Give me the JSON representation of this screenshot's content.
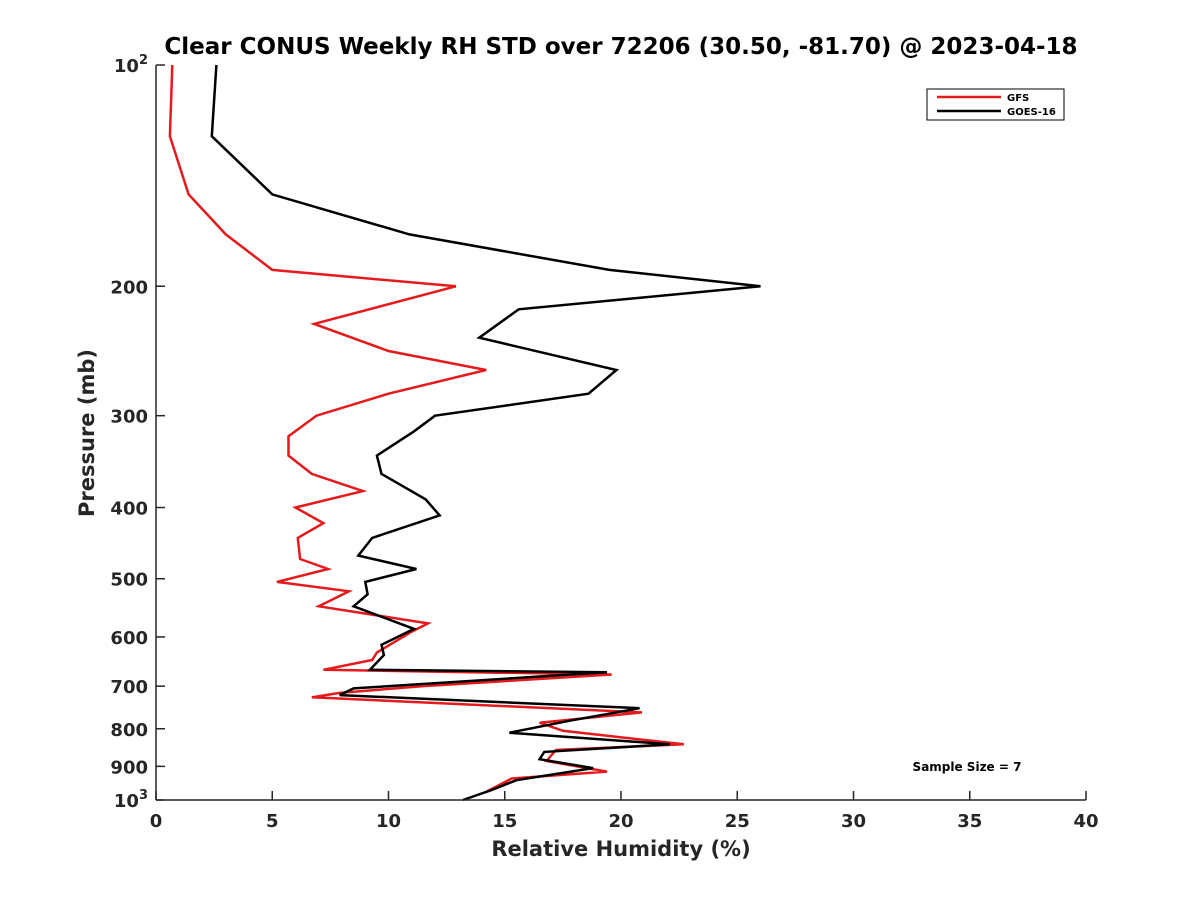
{
  "chart_data": {
    "type": "line",
    "title": "Clear CONUS Weekly RH STD over 72206 (30.50, -81.70) @ 2023-04-18",
    "xlabel": "Relative Humidity (%)",
    "ylabel": "Pressure (mb)",
    "xlim": [
      0,
      40
    ],
    "ylim": [
      100,
      1000
    ],
    "y_scale": "log",
    "y_reversed": true,
    "grid": false,
    "legend_position": "top-right",
    "x_ticks": [
      0,
      5,
      10,
      15,
      20,
      25,
      30,
      35,
      40
    ],
    "y_ticks": [
      {
        "value": 100,
        "label": "10",
        "exp": "2"
      },
      {
        "value": 200,
        "label": "200",
        "exp": ""
      },
      {
        "value": 300,
        "label": "300",
        "exp": ""
      },
      {
        "value": 400,
        "label": "400",
        "exp": ""
      },
      {
        "value": 500,
        "label": "500",
        "exp": ""
      },
      {
        "value": 600,
        "label": "600",
        "exp": ""
      },
      {
        "value": 700,
        "label": "700",
        "exp": ""
      },
      {
        "value": 800,
        "label": "800",
        "exp": ""
      },
      {
        "value": 900,
        "label": "900",
        "exp": ""
      },
      {
        "value": 1000,
        "label": "10",
        "exp": "3"
      }
    ],
    "annotation": "Sample Size = 7",
    "series": [
      {
        "name": "GFS",
        "color": "#e41a1c",
        "points": [
          [
            0.7,
            100
          ],
          [
            0.6,
            125
          ],
          [
            1.4,
            150
          ],
          [
            3.0,
            170
          ],
          [
            5.0,
            190
          ],
          [
            12.9,
            200
          ],
          [
            6.8,
            225
          ],
          [
            10.0,
            245
          ],
          [
            14.2,
            260
          ],
          [
            10.0,
            280
          ],
          [
            6.9,
            300
          ],
          [
            5.7,
            320
          ],
          [
            5.7,
            340
          ],
          [
            6.7,
            360
          ],
          [
            8.9,
            380
          ],
          [
            6.0,
            400
          ],
          [
            7.2,
            420
          ],
          [
            6.1,
            440
          ],
          [
            6.2,
            470
          ],
          [
            7.4,
            485
          ],
          [
            5.2,
            505
          ],
          [
            8.3,
            520
          ],
          [
            7.0,
            545
          ],
          [
            11.7,
            575
          ],
          [
            11.0,
            590
          ],
          [
            9.5,
            630
          ],
          [
            9.3,
            645
          ],
          [
            7.2,
            665
          ],
          [
            19.6,
            675
          ],
          [
            11.5,
            700
          ],
          [
            7.9,
            715
          ],
          [
            6.7,
            725
          ],
          [
            20.9,
            760
          ],
          [
            16.5,
            785
          ],
          [
            17.5,
            805
          ],
          [
            22.7,
            840
          ],
          [
            17.2,
            855
          ],
          [
            16.8,
            885
          ],
          [
            19.4,
            915
          ],
          [
            15.3,
            935
          ],
          [
            14.2,
            975
          ]
        ]
      },
      {
        "name": "GOES-16",
        "color": "#000000",
        "points": [
          [
            2.6,
            100
          ],
          [
            2.4,
            125
          ],
          [
            5.0,
            150
          ],
          [
            10.9,
            170
          ],
          [
            19.5,
            190
          ],
          [
            26.0,
            200
          ],
          [
            15.6,
            215
          ],
          [
            13.9,
            235
          ],
          [
            19.8,
            260
          ],
          [
            18.6,
            280
          ],
          [
            12.0,
            300
          ],
          [
            11.1,
            315
          ],
          [
            9.5,
            340
          ],
          [
            9.7,
            360
          ],
          [
            11.6,
            390
          ],
          [
            12.2,
            410
          ],
          [
            9.3,
            440
          ],
          [
            8.7,
            465
          ],
          [
            11.2,
            485
          ],
          [
            9.0,
            505
          ],
          [
            9.1,
            525
          ],
          [
            8.5,
            545
          ],
          [
            11.1,
            585
          ],
          [
            9.7,
            615
          ],
          [
            9.8,
            635
          ],
          [
            9.2,
            665
          ],
          [
            19.4,
            670
          ],
          [
            8.5,
            705
          ],
          [
            7.9,
            720
          ],
          [
            20.8,
            750
          ],
          [
            17.8,
            780
          ],
          [
            15.2,
            810
          ],
          [
            22.1,
            840
          ],
          [
            16.7,
            860
          ],
          [
            16.5,
            880
          ],
          [
            18.8,
            905
          ],
          [
            15.5,
            940
          ],
          [
            14.4,
            970
          ],
          [
            13.2,
            1000
          ]
        ]
      }
    ]
  }
}
